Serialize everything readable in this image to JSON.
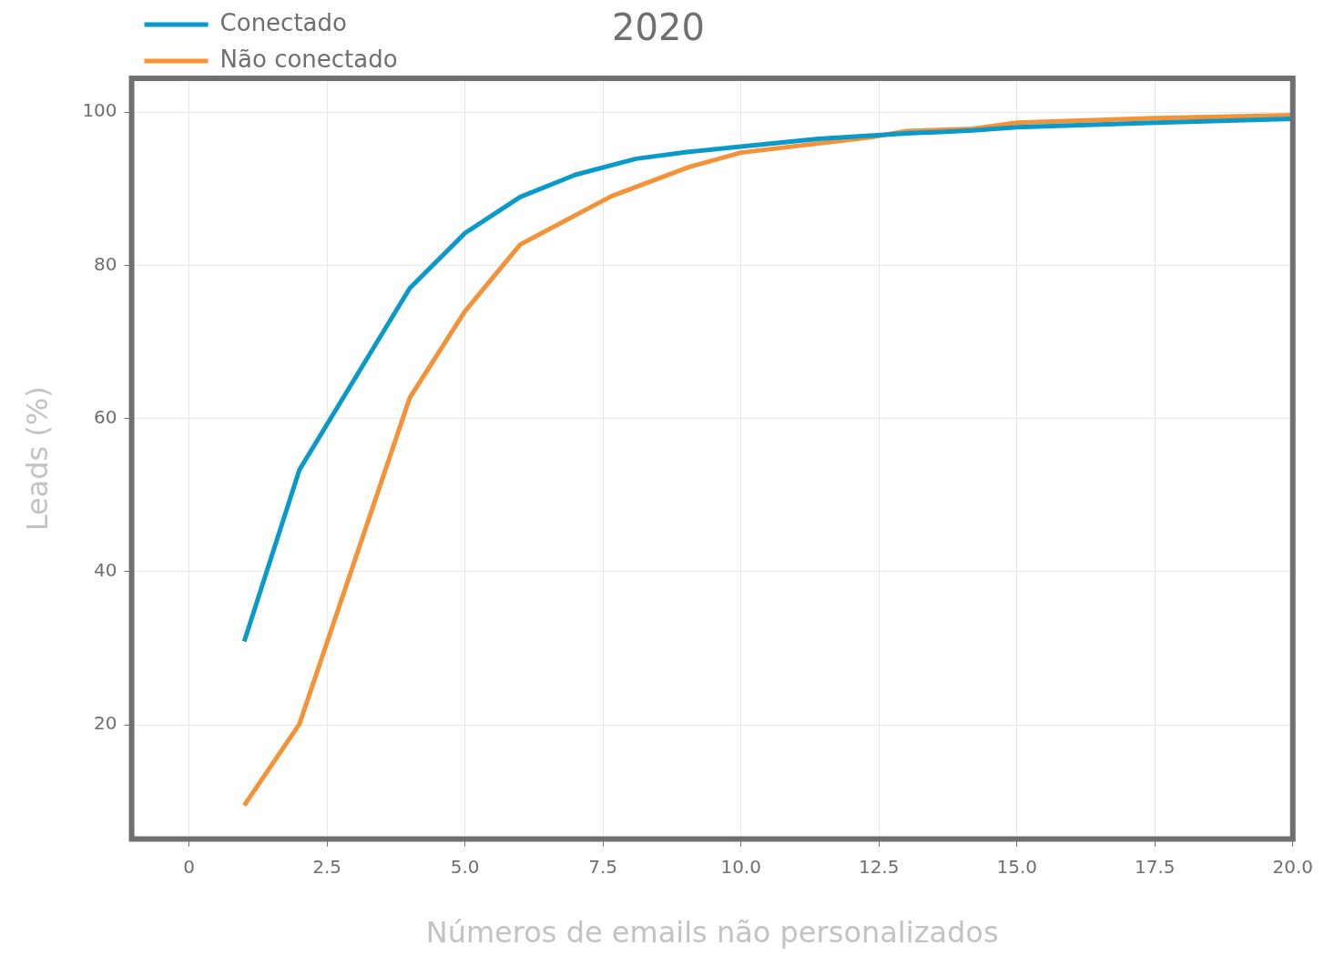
{
  "chart_data": {
    "type": "line",
    "title": "2020",
    "xlabel": "Números de emails não personalizados",
    "ylabel": "Leads (%)",
    "xlim": [
      -1.04,
      20
    ],
    "ylim": [
      5.1,
      104.4
    ],
    "xticks": [
      0,
      2.5,
      {
        "value": 5,
        "label": "5.0"
      },
      7.5,
      {
        "value": 10,
        "label": "10.0"
      },
      12.5,
      {
        "value": 15,
        "label": "15.0"
      },
      17.5,
      {
        "value": 20,
        "label": "20.0"
      }
    ],
    "yticks": [
      20,
      40,
      60,
      80,
      100
    ],
    "grid": true,
    "legend": "top left",
    "line_style": "solid",
    "marker": "none",
    "series": [
      {
        "name": "Conectado",
        "color": "#0a9ac9",
        "x": [
          1,
          2,
          4,
          5,
          6,
          7,
          8.1,
          9.05,
          10,
          11.4,
          13,
          14.2,
          15,
          17.5,
          20
        ],
        "values": [
          30.9,
          53.3,
          77.0,
          84.2,
          88.9,
          91.8,
          93.9,
          94.8,
          95.5,
          96.5,
          97.2,
          97.6,
          98.0,
          98.6,
          99.1
        ]
      },
      {
        "name": "Não conectado",
        "color": "#f39237",
        "x": [
          1,
          2,
          4,
          5,
          6,
          7.65,
          9.05,
          10,
          12.35,
          13,
          14.2,
          15,
          17.5,
          20
        ],
        "values": [
          9.5,
          20.1,
          62.7,
          74.0,
          82.7,
          89.0,
          92.8,
          94.7,
          96.7,
          97.5,
          97.8,
          98.6,
          99.2,
          99.6
        ]
      }
    ]
  }
}
